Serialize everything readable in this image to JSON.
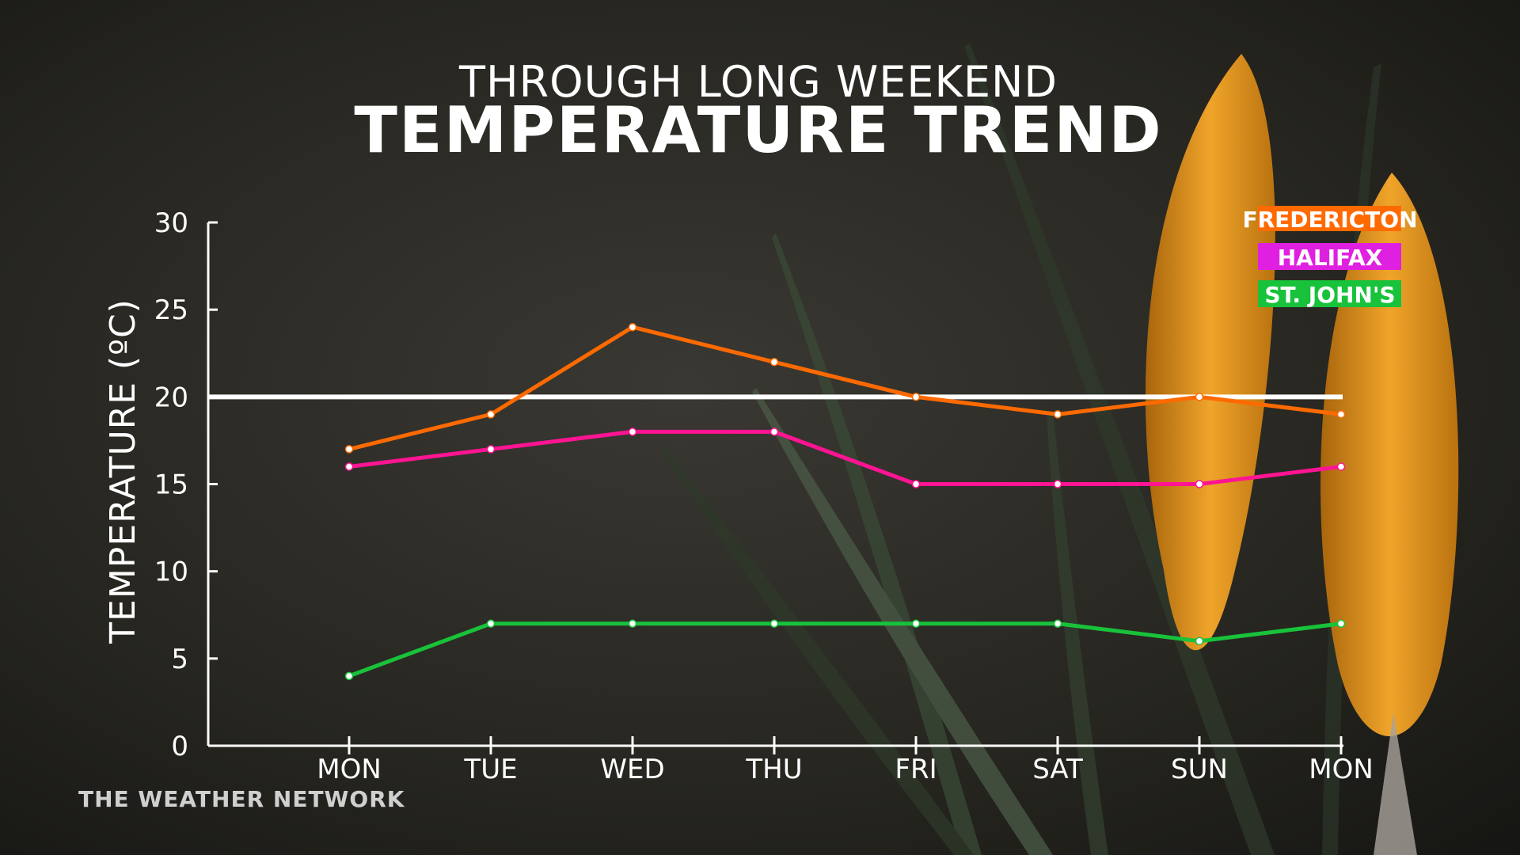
{
  "branding": {
    "name": "THE WEATHER NETWORK"
  },
  "chart_data": {
    "type": "line",
    "title": "TEMPERATURE TREND",
    "subtitle": "THROUGH LONG WEEKEND",
    "ylabel": "TEMPERATURE (ºC)",
    "xlabel": "",
    "categories": [
      "MON",
      "TUE",
      "WED",
      "THU",
      "FRI",
      "SAT",
      "SUN",
      "MON"
    ],
    "ylim": [
      0,
      30
    ],
    "yticks": [
      0,
      5,
      10,
      15,
      20,
      25,
      30
    ],
    "grid": false,
    "reference_line": {
      "value": 20,
      "color": "#ffffff"
    },
    "legend_position": "top-right",
    "series": [
      {
        "name": "FREDERICTON",
        "color": "#ff6a00",
        "values": [
          17,
          19,
          24,
          22,
          20,
          19,
          20,
          19
        ]
      },
      {
        "name": "HALIFAX",
        "color": "#ff1493",
        "legend_color": "#e020e0",
        "values": [
          16,
          17,
          18,
          18,
          15,
          15,
          15,
          16
        ]
      },
      {
        "name": "ST. JOHN'S",
        "color": "#18c23a",
        "values": [
          4,
          7,
          7,
          7,
          7,
          7,
          6,
          7
        ]
      }
    ]
  }
}
